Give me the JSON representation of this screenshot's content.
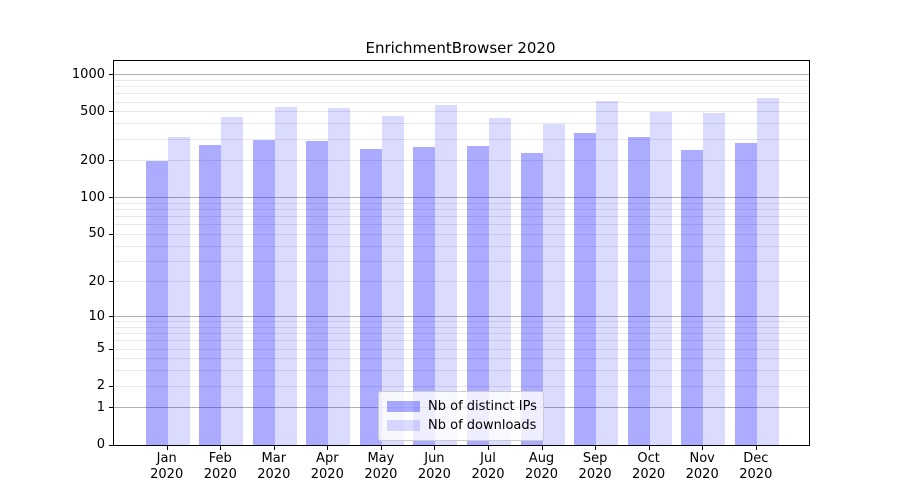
{
  "chart_data": {
    "type": "bar",
    "title": "EnrichmentBrowser 2020",
    "categories": [
      "Jan",
      "Feb",
      "Mar",
      "Apr",
      "May",
      "Jun",
      "Jul",
      "Aug",
      "Sep",
      "Oct",
      "Nov",
      "Dec"
    ],
    "x_tick_second_line": "2020",
    "series": [
      {
        "name": "Nb of distinct IPs",
        "color": "rgba(0,0,255,0.33)",
        "values": [
          199,
          268,
          295,
          290,
          251,
          257,
          264,
          231,
          340,
          310,
          245,
          280
        ]
      },
      {
        "name": "Nb of downloads",
        "color": "rgba(0,0,255,0.14)",
        "values": [
          310,
          458,
          549,
          539,
          462,
          570,
          447,
          397,
          610,
          503,
          494,
          648
        ]
      }
    ],
    "yscale": "log1p",
    "ytick_values": [
      0,
      1,
      2,
      5,
      10,
      20,
      50,
      100,
      200,
      500,
      1000
    ],
    "ylim": [
      0,
      1290
    ],
    "grid": true,
    "legend_position": "bottom-center",
    "colors": {
      "grid_major": "#b0b0b0",
      "grid_minor": "#e7e7e7",
      "spine": "#000000",
      "text": "#000000",
      "legend_border": "#cccccc",
      "legend_bg": "rgba(255,255,255,0.8)"
    }
  }
}
